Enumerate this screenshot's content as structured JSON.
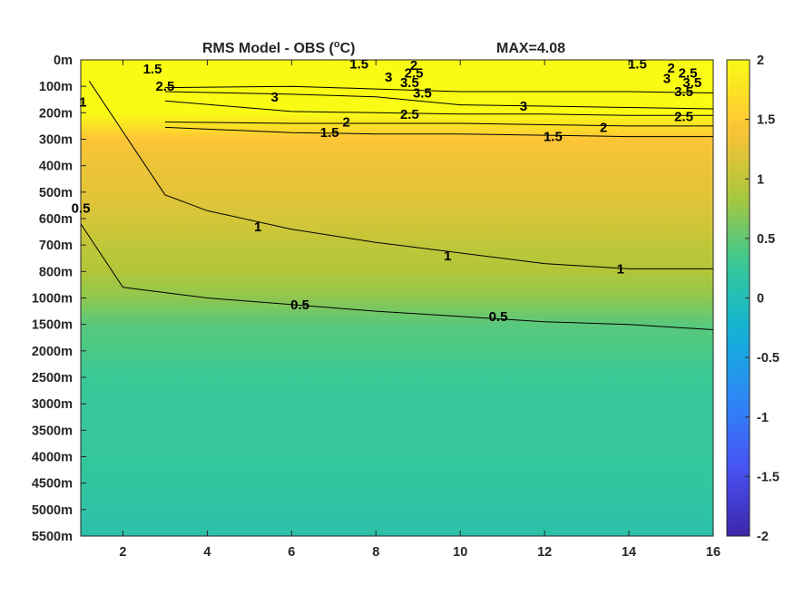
{
  "chart_data": {
    "type": "heatmap",
    "title": "RMS Model - OBS (",
    "title_unit_sup": "o",
    "title_unit_rest": "C)",
    "max_label": "MAX=4.08",
    "colormap": "parula",
    "xlabel": "",
    "ylabel": "",
    "xlim": [
      1,
      16
    ],
    "x_ticks": [
      2,
      4,
      6,
      8,
      10,
      12,
      14,
      16
    ],
    "y_ticks": [
      "0m",
      "100m",
      "200m",
      "300m",
      "400m",
      "500m",
      "600m",
      "700m",
      "800m",
      "1000m",
      "1500m",
      "2000m",
      "2500m",
      "3000m",
      "3500m",
      "4000m",
      "4500m",
      "5000m",
      "5500m"
    ],
    "clim": [
      -2,
      2
    ],
    "colorbar_ticks": [
      2,
      1.5,
      1,
      0.5,
      0,
      -0.5,
      -1,
      -1.5,
      -2
    ],
    "colorbar_labels": [
      "2",
      "1.5",
      "1",
      "0.5",
      "0",
      "-0.5",
      "-1",
      "-1.5",
      "-2"
    ],
    "depth_index_values": [
      2.0,
      2.6,
      2.4,
      1.45,
      1.3,
      1.25,
      1.15,
      1.0,
      0.9,
      0.72,
      0.45,
      0.38,
      0.3,
      0.25,
      0.25,
      0.25,
      0.2,
      0.15,
      0.12
    ],
    "contours": [
      {
        "level": 0.5,
        "label": "0.5",
        "x": [
          1,
          2,
          4,
          6,
          8,
          10,
          12,
          14,
          16
        ],
        "depth_index": [
          6.2,
          8.6,
          9.0,
          9.25,
          9.5,
          9.7,
          9.9,
          10.0,
          10.2
        ]
      },
      {
        "level": 1,
        "label": "1",
        "x": [
          1.2,
          2.2,
          3,
          4,
          6,
          8,
          10,
          12,
          14,
          16
        ],
        "depth_index": [
          0.8,
          3.2,
          5.1,
          5.7,
          6.4,
          6.9,
          7.3,
          7.7,
          7.9,
          7.9
        ]
      },
      {
        "level": 1.5,
        "label": "1.5",
        "x": [
          3,
          6,
          8,
          10,
          12,
          14,
          16
        ],
        "depth_index": [
          2.55,
          2.75,
          2.8,
          2.8,
          2.85,
          2.9,
          2.9
        ]
      },
      {
        "level": 2,
        "label": "2",
        "x": [
          3,
          6,
          8,
          10,
          12,
          14,
          16
        ],
        "depth_index": [
          2.35,
          2.4,
          2.4,
          2.4,
          2.45,
          2.5,
          2.5
        ]
      },
      {
        "level": 2.5,
        "label": "2.5",
        "x": [
          3,
          6,
          8,
          10,
          12,
          14,
          16
        ],
        "depth_index": [
          1.55,
          1.95,
          2.0,
          2.05,
          2.05,
          2.1,
          2.1
        ]
      },
      {
        "level": 3,
        "label": "3",
        "x": [
          3,
          6,
          8,
          10,
          12,
          14,
          16
        ],
        "depth_index": [
          1.2,
          1.3,
          1.4,
          1.7,
          1.75,
          1.8,
          1.85
        ]
      },
      {
        "level": 3.5,
        "label": "3.5",
        "x": [
          3,
          6,
          8,
          10,
          12,
          14,
          16
        ],
        "depth_index": [
          1.05,
          1.0,
          1.1,
          1.2,
          1.2,
          1.2,
          1.25
        ]
      }
    ],
    "contour_labels": [
      {
        "text": "1.5",
        "x": 2.7,
        "depth_index": 0.35
      },
      {
        "text": "2.5",
        "x": 3.0,
        "depth_index": 1.0
      },
      {
        "text": "1.5",
        "x": 7.6,
        "depth_index": 0.15
      },
      {
        "text": "2",
        "x": 8.9,
        "depth_index": 0.2
      },
      {
        "text": "3",
        "x": 8.3,
        "depth_index": 0.65
      },
      {
        "text": "2.5",
        "x": 8.9,
        "depth_index": 0.5
      },
      {
        "text": "3.5",
        "x": 8.8,
        "depth_index": 0.85
      },
      {
        "text": "3.5",
        "x": 9.1,
        "depth_index": 1.25
      },
      {
        "text": "3",
        "x": 5.6,
        "depth_index": 1.4
      },
      {
        "text": "2.5",
        "x": 8.8,
        "depth_index": 2.05
      },
      {
        "text": "2",
        "x": 7.3,
        "depth_index": 2.35
      },
      {
        "text": "1.5",
        "x": 6.9,
        "depth_index": 2.75
      },
      {
        "text": "3",
        "x": 11.5,
        "depth_index": 1.75
      },
      {
        "text": "1.5",
        "x": 12.2,
        "depth_index": 2.9
      },
      {
        "text": "2",
        "x": 13.4,
        "depth_index": 2.55
      },
      {
        "text": "2.5",
        "x": 15.3,
        "depth_index": 2.15
      },
      {
        "text": "1.5",
        "x": 14.2,
        "depth_index": 0.15
      },
      {
        "text": "2",
        "x": 15.0,
        "depth_index": 0.3
      },
      {
        "text": "2.5",
        "x": 15.4,
        "depth_index": 0.5
      },
      {
        "text": "3",
        "x": 14.9,
        "depth_index": 0.7
      },
      {
        "text": "3.5",
        "x": 15.5,
        "depth_index": 0.85
      },
      {
        "text": "3.5",
        "x": 15.3,
        "depth_index": 1.2
      },
      {
        "text": "1",
        "x": 5.2,
        "depth_index": 6.3
      },
      {
        "text": "1",
        "x": 9.7,
        "depth_index": 7.4
      },
      {
        "text": "1",
        "x": 13.8,
        "depth_index": 7.9
      },
      {
        "text": "0.5",
        "x": 6.2,
        "depth_index": 9.25
      },
      {
        "text": "0.5",
        "x": 10.9,
        "depth_index": 9.7
      },
      {
        "text": "1",
        "x": 1.05,
        "depth_index": 1.6
      },
      {
        "text": "0.5",
        "x": 1.0,
        "depth_index": 5.6
      }
    ]
  }
}
